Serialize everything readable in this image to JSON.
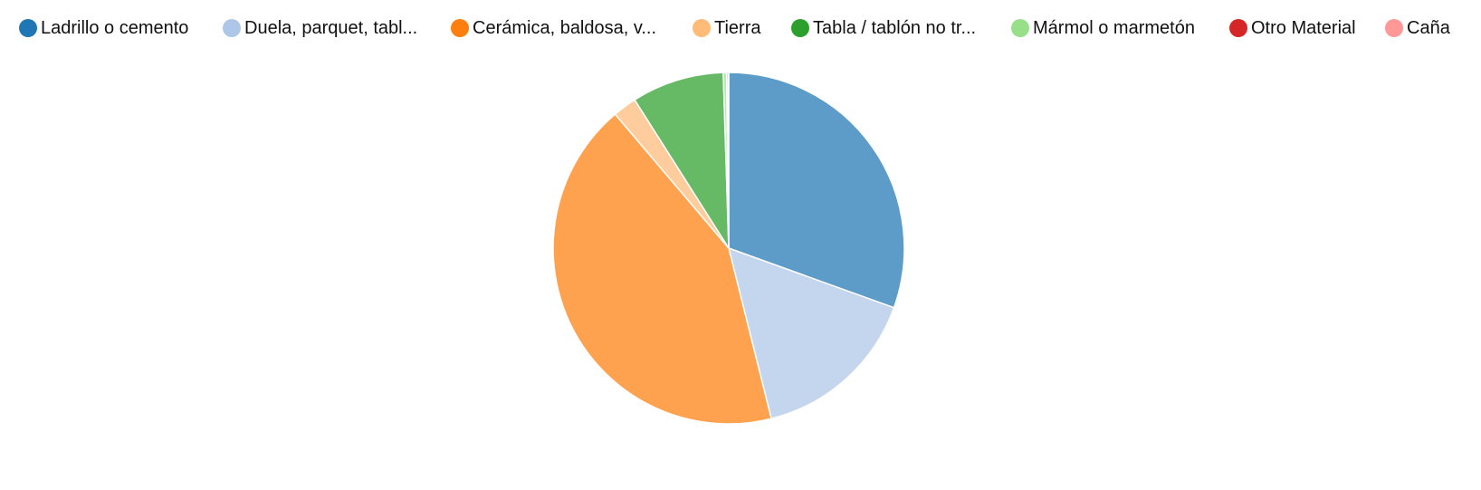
{
  "chart_data": {
    "type": "pie",
    "legend_position": "top",
    "slices": [
      {
        "label": "Ladrillo o cemento",
        "value": 30.5,
        "color": "#1f77b4"
      },
      {
        "label": "Duela, parquet, tabl...",
        "value": 15.6,
        "color": "#aec7e8"
      },
      {
        "label": "Cerámica, baldosa, v...",
        "value": 42.7,
        "color": "#ff7f0e"
      },
      {
        "label": "Tierra",
        "value": 2.2,
        "color": "#ffbb78"
      },
      {
        "label": "Tabla / tablón no tr...",
        "value": 8.5,
        "color": "#2ca02c"
      },
      {
        "label": "Mármol o marmetón",
        "value": 0.3,
        "color": "#98df8a"
      },
      {
        "label": "Otro Material",
        "value": 0.15,
        "color": "#d62728"
      },
      {
        "label": "Caña",
        "value": 0.05,
        "color": "#ff9896"
      }
    ]
  }
}
